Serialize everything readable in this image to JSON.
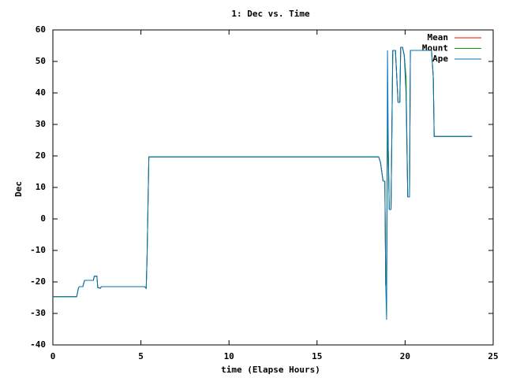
{
  "chart_data": {
    "type": "line",
    "title": "1: Dec vs. Time",
    "x_label": "time (Elapse Hours)",
    "y_label": "Dec",
    "x": [
      0,
      1.35,
      1.45,
      1.5,
      1.7,
      1.8,
      2.3,
      2.35,
      2.5,
      2.55,
      2.7,
      2.75,
      5.2,
      5.3,
      5.35,
      5.45,
      18.5,
      18.6,
      18.7,
      18.75,
      18.85,
      18.9,
      18.95,
      19.0,
      19.05,
      19.1,
      19.2,
      19.3,
      19.45,
      19.6,
      19.7,
      19.75,
      19.85,
      19.95,
      20.05,
      20.15,
      20.25,
      20.3,
      21.5,
      21.6,
      21.65,
      23.8
    ],
    "series": [
      {
        "name": "Mean",
        "color": "#ff0000",
        "values": [
          -24.7,
          -24.7,
          -22,
          -21.5,
          -21.5,
          -19.5,
          -19.5,
          -18.2,
          -18.2,
          -21.8,
          -22,
          -21.5,
          -21.5,
          -22,
          -12,
          19.7,
          19.7,
          18,
          14,
          12,
          12,
          -21,
          -21,
          32,
          20,
          3,
          3,
          53.5,
          53.5,
          37,
          37,
          54.5,
          54.5,
          52,
          45,
          7,
          7,
          53.5,
          53.5,
          45,
          26.2,
          26.2
        ]
      },
      {
        "name": "Mount",
        "color": "#00a000",
        "values": [
          -24.7,
          -24.7,
          -22,
          -21.5,
          -21.5,
          -19.5,
          -19.5,
          -18.2,
          -18.2,
          -21.8,
          -22,
          -21.5,
          -21.5,
          -22,
          -12,
          19.7,
          19.7,
          18,
          14,
          12,
          12,
          -21,
          -21,
          32,
          20,
          3,
          3,
          53.5,
          53.5,
          37,
          37,
          54.5,
          54.5,
          52,
          45,
          7,
          7,
          53.5,
          53.5,
          45,
          26.2,
          26.2
        ]
      },
      {
        "name": "Ape",
        "color": "#0072bd",
        "values": [
          -24.7,
          -24.7,
          -22,
          -21.5,
          -21.5,
          -19.5,
          -19.5,
          -18.2,
          -18.2,
          -21.8,
          -22,
          -21.5,
          -21.5,
          -22,
          -12,
          19.7,
          19.7,
          18,
          14,
          12,
          12,
          -21,
          -32,
          53.5,
          20,
          3,
          3,
          53.5,
          53.5,
          37,
          37,
          54.5,
          54.5,
          52,
          40,
          7,
          7,
          53.5,
          53.5,
          45,
          26.2,
          26.2
        ]
      }
    ],
    "xlim": [
      0,
      25
    ],
    "xticks": [
      0,
      5,
      10,
      15,
      20,
      25
    ],
    "ylim": [
      -40,
      60
    ],
    "yticks": [
      -40,
      -30,
      -20,
      -10,
      0,
      10,
      20,
      30,
      40,
      50,
      60
    ],
    "grid": false,
    "legend": "top-right"
  }
}
